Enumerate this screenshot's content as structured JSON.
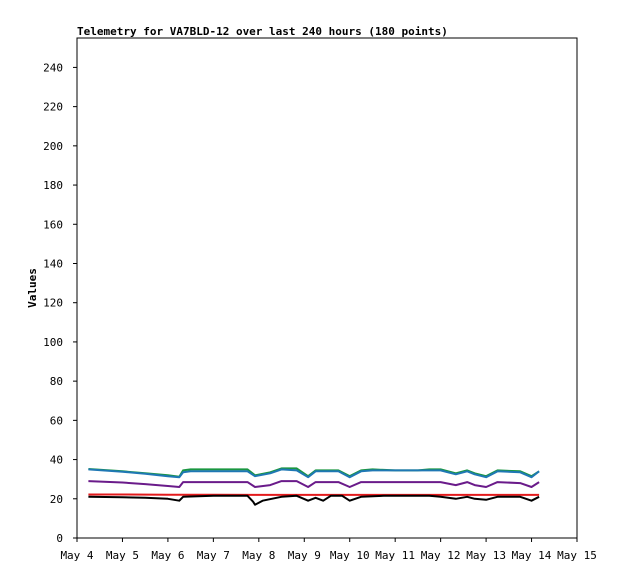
{
  "chart_data": {
    "type": "line",
    "title": "Telemetry for VA7BLD-12 over last 240 hours (180 points)",
    "xlabel": "",
    "ylabel": "Values",
    "xlim": [
      "2024-05-04T00:00",
      "2024-05-15T00:00"
    ],
    "ylim": [
      0,
      255
    ],
    "x_tick_labels": [
      "May 4",
      "May 5",
      "May 6",
      "May 7",
      "May 8",
      "May 9",
      "May 10",
      "May 11",
      "May 12",
      "May 13",
      "May 14",
      "May 15"
    ],
    "y_ticks": [
      0,
      20,
      40,
      60,
      80,
      100,
      120,
      140,
      160,
      180,
      200,
      220,
      240
    ],
    "grid": false,
    "legend": "none",
    "series": [
      {
        "color": "#1a9641",
        "points": [
          [
            "2024-05-04T06:00",
            35.2
          ],
          [
            "2024-05-05T00:00",
            34.0
          ],
          [
            "2024-05-05T12:00",
            33.0
          ],
          [
            "2024-05-06T00:00",
            32.0
          ],
          [
            "2024-05-06T06:00",
            31.2
          ],
          [
            "2024-05-06T08:00",
            34.5
          ],
          [
            "2024-05-06T12:00",
            35.0
          ],
          [
            "2024-05-07T00:00",
            35.0
          ],
          [
            "2024-05-07T12:00",
            35.0
          ],
          [
            "2024-05-07T18:00",
            35.0
          ],
          [
            "2024-05-07T22:00",
            32.0
          ],
          [
            "2024-05-08T06:00",
            33.5
          ],
          [
            "2024-05-08T12:00",
            35.5
          ],
          [
            "2024-05-08T20:00",
            35.5
          ],
          [
            "2024-05-09T02:00",
            31.5
          ],
          [
            "2024-05-09T06:00",
            34.5
          ],
          [
            "2024-05-09T18:00",
            34.5
          ],
          [
            "2024-05-10T00:00",
            31.5
          ],
          [
            "2024-05-10T06:00",
            34.5
          ],
          [
            "2024-05-10T12:00",
            35.0
          ],
          [
            "2024-05-11T00:00",
            34.5
          ],
          [
            "2024-05-11T12:00",
            34.5
          ],
          [
            "2024-05-11T18:00",
            35.0
          ],
          [
            "2024-05-12T00:00",
            35.0
          ],
          [
            "2024-05-12T08:00",
            33.0
          ],
          [
            "2024-05-12T14:00",
            34.5
          ],
          [
            "2024-05-12T18:00",
            33.0
          ],
          [
            "2024-05-13T00:00",
            31.5
          ],
          [
            "2024-05-13T06:00",
            34.5
          ],
          [
            "2024-05-13T18:00",
            34.0
          ],
          [
            "2024-05-14T00:00",
            31.5
          ],
          [
            "2024-05-14T04:00",
            34.0
          ]
        ]
      },
      {
        "color": "#1f78b4",
        "points": [
          [
            "2024-05-04T06:00",
            35.0
          ],
          [
            "2024-05-05T00:00",
            33.8
          ],
          [
            "2024-05-05T12:00",
            32.8
          ],
          [
            "2024-05-06T00:00",
            31.5
          ],
          [
            "2024-05-06T06:00",
            31.0
          ],
          [
            "2024-05-06T08:00",
            33.5
          ],
          [
            "2024-05-06T12:00",
            34.0
          ],
          [
            "2024-05-07T00:00",
            34.0
          ],
          [
            "2024-05-07T12:00",
            34.0
          ],
          [
            "2024-05-07T18:00",
            34.0
          ],
          [
            "2024-05-07T22:00",
            31.5
          ],
          [
            "2024-05-08T06:00",
            33.0
          ],
          [
            "2024-05-08T12:00",
            35.0
          ],
          [
            "2024-05-08T20:00",
            34.5
          ],
          [
            "2024-05-09T02:00",
            31.0
          ],
          [
            "2024-05-09T06:00",
            34.0
          ],
          [
            "2024-05-09T18:00",
            34.0
          ],
          [
            "2024-05-10T00:00",
            31.0
          ],
          [
            "2024-05-10T06:00",
            34.0
          ],
          [
            "2024-05-10T12:00",
            34.5
          ],
          [
            "2024-05-11T00:00",
            34.5
          ],
          [
            "2024-05-11T12:00",
            34.5
          ],
          [
            "2024-05-11T18:00",
            34.5
          ],
          [
            "2024-05-12T00:00",
            34.5
          ],
          [
            "2024-05-12T08:00",
            32.5
          ],
          [
            "2024-05-12T14:00",
            34.0
          ],
          [
            "2024-05-12T18:00",
            32.5
          ],
          [
            "2024-05-13T00:00",
            31.0
          ],
          [
            "2024-05-13T06:00",
            34.0
          ],
          [
            "2024-05-13T18:00",
            33.5
          ],
          [
            "2024-05-14T00:00",
            31.0
          ],
          [
            "2024-05-14T04:00",
            34.0
          ]
        ]
      },
      {
        "color": "#6a1b8a",
        "points": [
          [
            "2024-05-04T06:00",
            29.0
          ],
          [
            "2024-05-05T00:00",
            28.3
          ],
          [
            "2024-05-05T12:00",
            27.5
          ],
          [
            "2024-05-06T00:00",
            26.5
          ],
          [
            "2024-05-06T06:00",
            26.0
          ],
          [
            "2024-05-06T08:00",
            28.5
          ],
          [
            "2024-05-07T00:00",
            28.5
          ],
          [
            "2024-05-07T18:00",
            28.5
          ],
          [
            "2024-05-07T22:00",
            26.0
          ],
          [
            "2024-05-08T06:00",
            27.0
          ],
          [
            "2024-05-08T12:00",
            29.0
          ],
          [
            "2024-05-08T20:00",
            29.0
          ],
          [
            "2024-05-09T02:00",
            26.0
          ],
          [
            "2024-05-09T06:00",
            28.5
          ],
          [
            "2024-05-09T18:00",
            28.5
          ],
          [
            "2024-05-10T00:00",
            26.0
          ],
          [
            "2024-05-10T06:00",
            28.5
          ],
          [
            "2024-05-11T00:00",
            28.5
          ],
          [
            "2024-05-11T18:00",
            28.5
          ],
          [
            "2024-05-12T00:00",
            28.5
          ],
          [
            "2024-05-12T08:00",
            27.0
          ],
          [
            "2024-05-12T14:00",
            28.5
          ],
          [
            "2024-05-12T18:00",
            27.0
          ],
          [
            "2024-05-13T00:00",
            26.0
          ],
          [
            "2024-05-13T06:00",
            28.5
          ],
          [
            "2024-05-13T18:00",
            28.0
          ],
          [
            "2024-05-14T00:00",
            26.0
          ],
          [
            "2024-05-14T04:00",
            28.5
          ]
        ]
      },
      {
        "color": "#e31a1c",
        "points": [
          [
            "2024-05-04T06:00",
            22.2
          ],
          [
            "2024-05-05T00:00",
            22.2
          ],
          [
            "2024-05-06T00:00",
            22.1
          ],
          [
            "2024-05-07T00:00",
            22.1
          ],
          [
            "2024-05-08T00:00",
            22.0
          ],
          [
            "2024-05-09T00:00",
            22.0
          ],
          [
            "2024-05-10T00:00",
            22.0
          ],
          [
            "2024-05-11T00:00",
            22.0
          ],
          [
            "2024-05-12T00:00",
            22.0
          ],
          [
            "2024-05-13T00:00",
            22.0
          ],
          [
            "2024-05-14T04:00",
            22.0
          ]
        ]
      },
      {
        "color": "#000000",
        "points": [
          [
            "2024-05-04T06:00",
            21.0
          ],
          [
            "2024-05-05T00:00",
            20.8
          ],
          [
            "2024-05-05T12:00",
            20.5
          ],
          [
            "2024-05-06T00:00",
            20.0
          ],
          [
            "2024-05-06T06:00",
            19.0
          ],
          [
            "2024-05-06T08:00",
            21.0
          ],
          [
            "2024-05-07T00:00",
            21.5
          ],
          [
            "2024-05-07T18:00",
            21.5
          ],
          [
            "2024-05-07T21:00",
            18.5
          ],
          [
            "2024-05-07T22:00",
            17.0
          ],
          [
            "2024-05-08T02:00",
            19.0
          ],
          [
            "2024-05-08T12:00",
            21.0
          ],
          [
            "2024-05-08T20:00",
            21.5
          ],
          [
            "2024-05-09T02:00",
            19.0
          ],
          [
            "2024-05-09T06:00",
            20.5
          ],
          [
            "2024-05-09T10:00",
            19.0
          ],
          [
            "2024-05-09T14:00",
            21.5
          ],
          [
            "2024-05-09T20:00",
            21.5
          ],
          [
            "2024-05-10T00:00",
            19.0
          ],
          [
            "2024-05-10T06:00",
            21.0
          ],
          [
            "2024-05-10T18:00",
            21.5
          ],
          [
            "2024-05-11T00:00",
            21.5
          ],
          [
            "2024-05-11T18:00",
            21.5
          ],
          [
            "2024-05-12T00:00",
            21.0
          ],
          [
            "2024-05-12T08:00",
            20.0
          ],
          [
            "2024-05-12T14:00",
            21.0
          ],
          [
            "2024-05-12T18:00",
            20.0
          ],
          [
            "2024-05-13T00:00",
            19.5
          ],
          [
            "2024-05-13T06:00",
            21.0
          ],
          [
            "2024-05-13T18:00",
            21.0
          ],
          [
            "2024-05-14T00:00",
            19.0
          ],
          [
            "2024-05-14T04:00",
            21.0
          ]
        ]
      }
    ]
  }
}
